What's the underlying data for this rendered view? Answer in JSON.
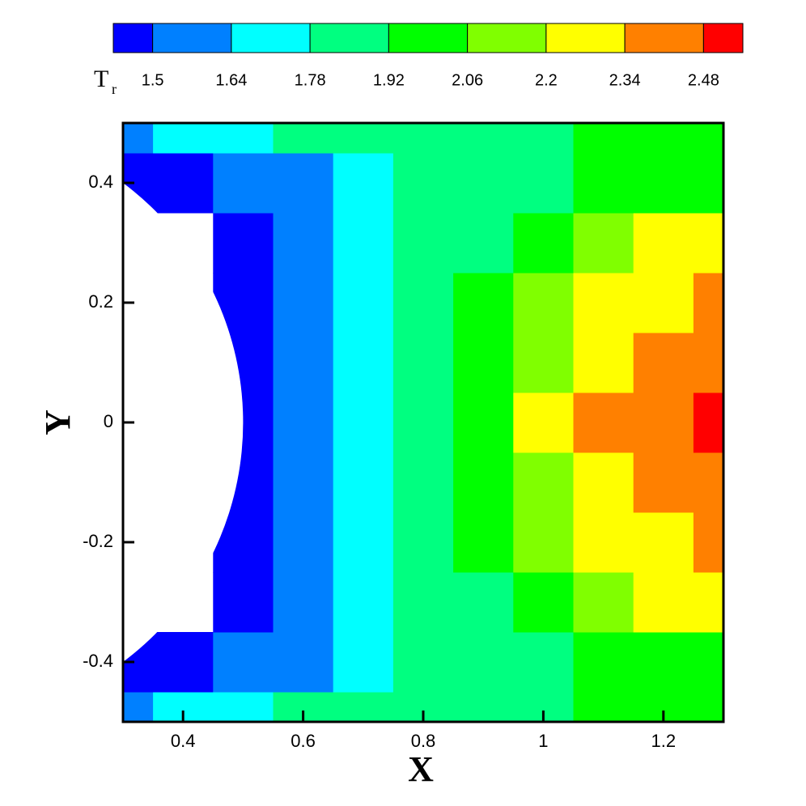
{
  "chart_data": {
    "type": "contour",
    "xlabel": "X",
    "ylabel": "Y",
    "colorbar_label": "T",
    "colorbar_label_sub": "r",
    "xlim": [
      0.3,
      1.3
    ],
    "ylim": [
      -0.5,
      0.5
    ],
    "xticks": [
      0.4,
      0.6,
      0.8,
      1,
      1.2
    ],
    "yticks": [
      -0.4,
      -0.2,
      0,
      0.2,
      0.4
    ],
    "clim": [
      1.43,
      2.55
    ],
    "levels": [
      1.5,
      1.64,
      1.78,
      1.92,
      2.06,
      2.2,
      2.34,
      2.48
    ],
    "colors": [
      "#0000ff",
      "#0080ff",
      "#00ffff",
      "#00ff80",
      "#00ff00",
      "#80ff00",
      "#ffff00",
      "#ff8000",
      "#ff0000"
    ],
    "body": {
      "cx": 0,
      "cy": 0,
      "r": 0.5
    },
    "x": [
      0.3,
      0.4,
      0.5,
      0.6,
      0.7,
      0.8,
      0.9,
      1.0,
      1.1,
      1.2,
      1.3
    ],
    "y": [
      -0.5,
      -0.4,
      -0.3,
      -0.2,
      -0.1,
      0,
      0.1,
      0.2,
      0.3,
      0.4,
      0.5
    ],
    "z": [
      [
        1.6,
        1.68,
        1.75,
        1.78,
        1.82,
        1.85,
        1.88,
        1.9,
        1.92,
        2.0,
        2.02
      ],
      [
        1.42,
        1.45,
        1.55,
        1.62,
        1.72,
        1.8,
        1.85,
        1.9,
        1.95,
        2.0,
        2.05
      ],
      [
        null,
        null,
        1.45,
        1.62,
        1.72,
        1.82,
        1.9,
        2.0,
        2.1,
        2.2,
        2.25
      ],
      [
        null,
        null,
        1.45,
        1.6,
        1.75,
        1.88,
        1.98,
        2.1,
        2.22,
        2.3,
        2.36
      ],
      [
        null,
        null,
        1.45,
        1.6,
        1.75,
        1.88,
        2.0,
        2.15,
        2.3,
        2.4,
        2.42
      ],
      [
        null,
        null,
        1.45,
        1.6,
        1.75,
        1.9,
        2.0,
        2.2,
        2.35,
        2.4,
        2.5
      ],
      [
        null,
        null,
        1.45,
        1.6,
        1.75,
        1.88,
        2.0,
        2.15,
        2.3,
        2.4,
        2.42
      ],
      [
        null,
        null,
        1.45,
        1.6,
        1.75,
        1.88,
        1.98,
        2.1,
        2.22,
        2.3,
        2.36
      ],
      [
        null,
        null,
        1.45,
        1.62,
        1.72,
        1.82,
        1.9,
        2.0,
        2.1,
        2.2,
        2.25
      ],
      [
        1.42,
        1.45,
        1.55,
        1.62,
        1.72,
        1.8,
        1.85,
        1.9,
        1.95,
        2.0,
        2.05
      ],
      [
        1.6,
        1.68,
        1.75,
        1.78,
        1.82,
        1.85,
        1.88,
        1.9,
        1.92,
        2.0,
        2.02
      ]
    ]
  }
}
